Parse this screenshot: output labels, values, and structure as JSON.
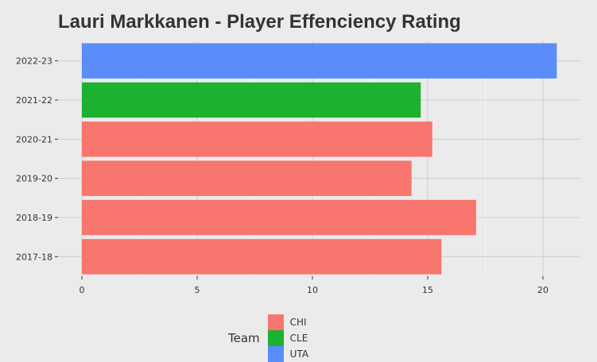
{
  "chart_data": {
    "type": "bar",
    "orientation": "horizontal",
    "title": "Lauri Markkanen - Player Effenciency Rating",
    "xlabel": "",
    "ylabel": "",
    "categories": [
      "2017-18",
      "2018-19",
      "2019-20",
      "2020-21",
      "2021-22",
      "2022-23"
    ],
    "values": [
      15.6,
      17.1,
      14.3,
      15.2,
      14.7,
      20.6
    ],
    "teams": [
      "CHI",
      "CHI",
      "CHI",
      "CHI",
      "CLE",
      "UTA"
    ],
    "xlim": [
      0,
      22
    ],
    "xticks": [
      0,
      5,
      10,
      15,
      20
    ],
    "grid": true,
    "legend": {
      "title": "Team",
      "position": "bottom",
      "entries": [
        {
          "label": "CHI",
          "color": "#f8766d"
        },
        {
          "label": "CLE",
          "color": "#1cb22f"
        },
        {
          "label": "UTA",
          "color": "#5b8dfa"
        }
      ]
    }
  }
}
